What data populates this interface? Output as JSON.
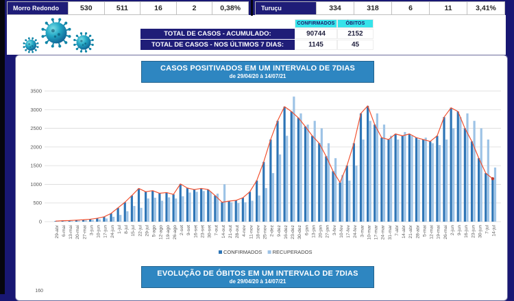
{
  "top_tables": {
    "left": {
      "name": "Morro Redondo",
      "values": [
        "530",
        "511",
        "16",
        "2",
        "0,38%"
      ]
    },
    "right": {
      "name": "Turuçu",
      "values": [
        "334",
        "318",
        "6",
        "11",
        "3,41%"
      ]
    }
  },
  "totals": {
    "col_headers": [
      "CONFIRMADOS",
      "ÓBITOS"
    ],
    "rows": [
      {
        "label": "TOTAL DE CASOS - ACUMULADO:",
        "confirmados": "90744",
        "obitos": "2152"
      },
      {
        "label": "TOTAL DE CASOS - NOS ÚLTIMOS 7 DIAS:",
        "confirmados": "1145",
        "obitos": "45"
      }
    ]
  },
  "chart_header": {
    "title": "CASOS POSITIVADOS EM UM INTERVALO DE 7DIAS",
    "subtitle": "de 29/04/20 à 14/07/21"
  },
  "bottom_header": {
    "title": "EVOLUÇÃO DE ÓBITOS EM UM INTERVALO DE 7DIAS",
    "subtitle": "de 29/04/20 à 14/07/21"
  },
  "misc": {
    "partial_axis_label": "160"
  },
  "icons": [
    "virus-icon",
    "virus-icon",
    "virus-icon"
  ],
  "colors": {
    "frame_navy": "#181773",
    "label_navy": "#1f1d78",
    "cyan_header": "#36e3ea",
    "title_blue": "#2e86c1",
    "confirmados_bar": "#2e75b6",
    "recuperados_bar": "#9dc3e6",
    "trend_red": "#f1502f",
    "trend_dot": "#c0392b",
    "grid": "#d9d9d9",
    "axis_text": "#595959"
  },
  "chart_data": {
    "type": "bar",
    "title": "CASOS POSITIVADOS EM UM INTERVALO DE 7DIAS",
    "subtitle": "de 29/04/20 à 14/07/21",
    "xlabel": "",
    "ylabel": "",
    "ylim": [
      0,
      3500
    ],
    "yticks": [
      0,
      500,
      1000,
      1500,
      2000,
      2500,
      3000,
      3500
    ],
    "grid": true,
    "legend_position": "bottom",
    "categories": [
      "29-abr",
      "6-mai",
      "13-mai",
      "20-mai",
      "27-mai",
      "3-jun",
      "10-jun",
      "17-jun",
      "24-jun",
      "1-jul",
      "8-jul",
      "15-jul",
      "22-jul",
      "29-jul",
      "5-ago",
      "12-ago",
      "19-ago",
      "26-ago",
      "2-set",
      "9-set",
      "16-set",
      "23-set",
      "30-set",
      "7-out",
      "14-out",
      "21-out",
      "28-out",
      "4-nov",
      "11-nov",
      "18-nov",
      "25-nov",
      "2-dez",
      "9-dez",
      "16-dez",
      "23-dez",
      "30-dez",
      "6-jan",
      "13-jan",
      "20-jan",
      "27-jan",
      "3-fev",
      "10-fev",
      "17-fev",
      "24-fev",
      "3-mar",
      "10-mar",
      "17-mar",
      "24-mar",
      "31-mar",
      "7-abr",
      "14-abr",
      "21-abr",
      "28-abr",
      "5-mai",
      "12-mai",
      "19-mai",
      "26-mai",
      "2-jun",
      "9-jun",
      "16-jun",
      "23-jun",
      "30-jun",
      "7-jul",
      "14-jul"
    ],
    "series": [
      {
        "name": "CONFIRMADOS",
        "color": "#2e75b6",
        "values": [
          15,
          25,
          30,
          40,
          50,
          65,
          90,
          130,
          220,
          370,
          520,
          700,
          890,
          800,
          830,
          760,
          780,
          730,
          1010,
          900,
          860,
          890,
          860,
          700,
          520,
          550,
          570,
          640,
          800,
          1100,
          1600,
          2200,
          2700,
          3080,
          2950,
          2780,
          2550,
          2300,
          2100,
          1750,
          1350,
          1050,
          1500,
          2100,
          2900,
          3100,
          2600,
          2250,
          2200,
          2350,
          2300,
          2350,
          2250,
          2200,
          2150,
          2300,
          2800,
          3050,
          2950,
          2500,
          2150,
          1700,
          1300,
          1150
        ]
      },
      {
        "name": "RECUPERADOS",
        "color": "#9dc3e6",
        "values": [
          8,
          12,
          20,
          28,
          35,
          45,
          60,
          85,
          130,
          180,
          280,
          420,
          370,
          620,
          640,
          560,
          650,
          620,
          680,
          780,
          800,
          820,
          800,
          750,
          1000,
          520,
          500,
          520,
          560,
          700,
          900,
          1300,
          1800,
          2300,
          3350,
          2900,
          2600,
          2700,
          2500,
          2100,
          1700,
          1250,
          1100,
          1500,
          2200,
          2700,
          2900,
          2600,
          2300,
          2200,
          2400,
          2300,
          2200,
          2250,
          2100,
          2050,
          2200,
          2500,
          2800,
          2900,
          2700,
          2500,
          2200,
          1450
        ]
      }
    ],
    "trend_line": {
      "follows": "CONFIRMADOS",
      "color": "#f1502f",
      "end_marker": true
    }
  }
}
